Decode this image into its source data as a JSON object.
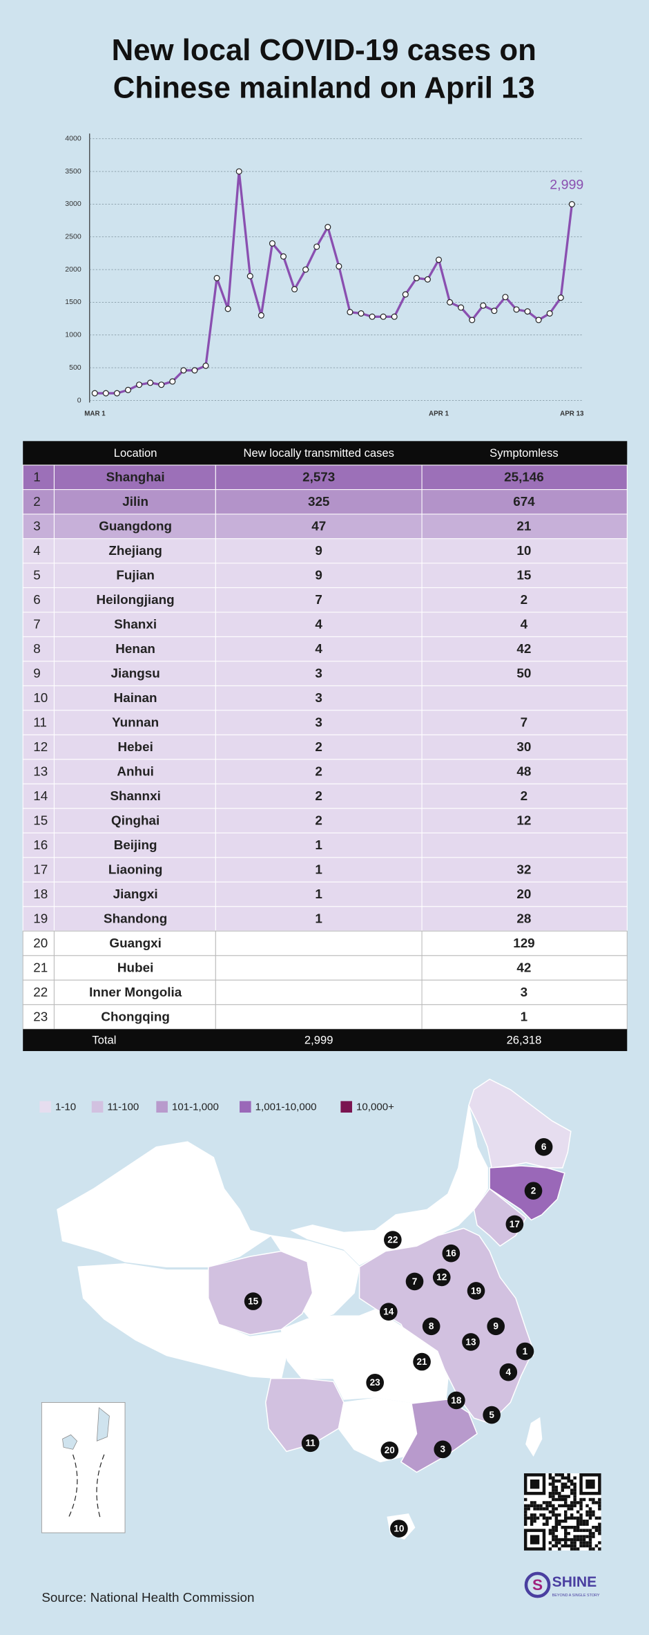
{
  "title_lines": [
    "New local COVID-19 cases on",
    "Chinese mainland on April 13"
  ],
  "chart_data": {
    "type": "line",
    "categories": [
      "MAR 1",
      null,
      null,
      null,
      null,
      null,
      null,
      null,
      null,
      null,
      null,
      null,
      null,
      null,
      null,
      null,
      null,
      null,
      null,
      null,
      null,
      null,
      null,
      null,
      null,
      null,
      null,
      null,
      null,
      null,
      null,
      "APR 1",
      null,
      null,
      null,
      null,
      null,
      null,
      null,
      null,
      null,
      null,
      null,
      "APR 13"
    ],
    "values": [
      110,
      110,
      110,
      160,
      240,
      270,
      240,
      290,
      460,
      460,
      530,
      1870,
      1400,
      3500,
      1900,
      1300,
      2400,
      2200,
      1700,
      2000,
      2350,
      2650,
      2050,
      1350,
      1330,
      1280,
      1280,
      1280,
      1620,
      1870,
      1850,
      2150,
      1500,
      1420,
      1230,
      1450,
      1370,
      1580,
      1390,
      1360,
      1230,
      1330,
      1570,
      2999
    ],
    "value_labels": [
      null,
      null,
      null,
      null,
      null,
      null,
      null,
      null,
      null,
      null,
      null,
      null,
      null,
      null,
      null,
      null,
      null,
      null,
      null,
      null,
      null,
      null,
      null,
      null,
      null,
      null,
      null,
      null,
      null,
      null,
      null,
      null,
      null,
      null,
      null,
      null,
      null,
      null,
      null,
      null,
      null,
      null,
      null,
      "2,999"
    ],
    "color": "#8a4fb0",
    "ylim": [
      0,
      4000
    ],
    "yticks": [
      0,
      500,
      1000,
      1500,
      2000,
      2500,
      3000,
      3500,
      4000
    ],
    "grid": true
  },
  "table": {
    "header": [
      "Location",
      "New locally transmitted cases",
      "Symptomless"
    ],
    "rows": [
      [
        "1",
        "Shanghai",
        "2,573",
        "25,146"
      ],
      [
        "2",
        "Jilin",
        "325",
        "674"
      ],
      [
        "3",
        "Guangdong",
        "47",
        "21"
      ],
      [
        "4",
        "Zhejiang",
        "9",
        "10"
      ],
      [
        "5",
        "Fujian",
        "9",
        "15"
      ],
      [
        "6",
        "Heilongjiang",
        "7",
        "2"
      ],
      [
        "7",
        "Shanxi",
        "4",
        "4"
      ],
      [
        "8",
        "Henan",
        "4",
        "42"
      ],
      [
        "9",
        "Jiangsu",
        "3",
        "50"
      ],
      [
        "10",
        "Hainan",
        "3",
        null
      ],
      [
        "11",
        "Yunnan",
        "3",
        "7"
      ],
      [
        "12",
        "Hebei",
        "2",
        "30"
      ],
      [
        "13",
        "Anhui",
        "2",
        "48"
      ],
      [
        "14",
        "Shannxi",
        "2",
        "2"
      ],
      [
        "15",
        "Qinghai",
        "2",
        "12"
      ],
      [
        "16",
        "Beijing",
        "1",
        null
      ],
      [
        "17",
        "Liaoning",
        "1",
        "32"
      ],
      [
        "18",
        "Jiangxi",
        "1",
        "20"
      ],
      [
        "19",
        "Shandong",
        "1",
        "28"
      ],
      [
        "20",
        "Guangxi",
        null,
        "129"
      ],
      [
        "21",
        "Hubei",
        null,
        "42"
      ],
      [
        "22",
        "Inner Mongolia",
        null,
        "3"
      ],
      [
        "23",
        "Chongqing",
        null,
        "1"
      ]
    ],
    "total": [
      "Total",
      "2,999",
      "26,318"
    ]
  },
  "map": {
    "legend": [
      {
        "label": "1-10",
        "color": "#e6ddef"
      },
      {
        "label": "11-100",
        "color": "#d2c1e0"
      },
      {
        "label": "101-1,000",
        "color": "#b89acc"
      },
      {
        "label": "1,001-10,000",
        "color": "#9a68b8"
      },
      {
        "label": "10,000+",
        "color": "#7a1450"
      }
    ],
    "markers": [
      "6",
      "2",
      "17",
      "22",
      "16",
      "7",
      "12",
      "19",
      "15",
      "14",
      "8",
      "9",
      "13",
      "1",
      "21",
      "4",
      "23",
      "18",
      "5",
      "11",
      "20",
      "3",
      "10"
    ]
  },
  "source": "Source: National Health Commission",
  "logo": {
    "name": "SHINE",
    "tagline": "BEYOND A SINGLE STORY"
  }
}
